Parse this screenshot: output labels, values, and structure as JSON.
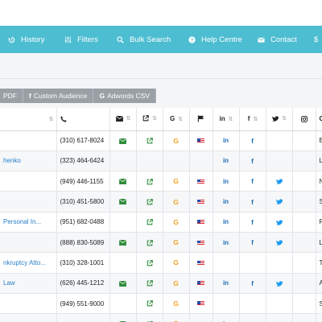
{
  "nav": {
    "items": [
      {
        "label": "History",
        "icon": "history-icon"
      },
      {
        "label": "Filters",
        "icon": "sliders-icon"
      },
      {
        "label": "Bulk Search",
        "icon": "search-icon"
      },
      {
        "label": "Help Centre",
        "icon": "question-circle-icon"
      },
      {
        "label": "Contact",
        "icon": "envelope-icon"
      },
      {
        "label": "$",
        "icon": "dollar-icon"
      }
    ]
  },
  "export_buttons": [
    {
      "label": "PDF"
    },
    {
      "label": "Custom Audience",
      "prefix": "f"
    },
    {
      "label": "Adwords CSV",
      "prefix": "G"
    }
  ],
  "table": {
    "columns": {
      "city": "City"
    },
    "rows": [
      {
        "name": "",
        "phone": "(310) 617-8024",
        "email": true,
        "website": true,
        "google": true,
        "flag": true,
        "linkedin": true,
        "facebook": true,
        "twitter": false,
        "city": "Bever"
      },
      {
        "name": "henko",
        "phone": "(323) 464-6424",
        "email": false,
        "website": false,
        "google": false,
        "flag": false,
        "linkedin": true,
        "facebook": true,
        "twitter": false,
        "city": "Los A"
      },
      {
        "name": "",
        "phone": "(949) 446-1155",
        "email": true,
        "website": true,
        "google": true,
        "flag": true,
        "linkedin": true,
        "facebook": true,
        "twitter": true,
        "city": "Newp"
      },
      {
        "name": "",
        "phone": "(310) 451-5800",
        "email": true,
        "website": true,
        "google": true,
        "flag": true,
        "linkedin": true,
        "facebook": true,
        "twitter": true,
        "city": "Santa"
      },
      {
        "name": "Personal In...",
        "phone": "(951) 682-0488",
        "email": false,
        "website": true,
        "google": true,
        "flag": true,
        "linkedin": true,
        "facebook": true,
        "twitter": true,
        "city": "Rivers"
      },
      {
        "name": "",
        "phone": "(888) 830-5089",
        "email": true,
        "website": true,
        "google": true,
        "flag": true,
        "linkedin": true,
        "facebook": true,
        "twitter": true,
        "city": "Los A"
      },
      {
        "name": "nkruptcy Atto...",
        "phone": "(310) 328-1001",
        "email": false,
        "website": true,
        "google": true,
        "flag": true,
        "linkedin": false,
        "facebook": false,
        "twitter": false,
        "city": "Torrar"
      },
      {
        "name": "Law",
        "phone": "(626) 445-1212",
        "email": true,
        "website": true,
        "google": true,
        "flag": true,
        "linkedin": true,
        "facebook": true,
        "twitter": true,
        "city": "Arcad"
      },
      {
        "name": "",
        "phone": "(949) 551-9000",
        "email": false,
        "website": true,
        "google": true,
        "flag": true,
        "linkedin": false,
        "facebook": false,
        "twitter": false,
        "city": "Seal E"
      },
      {
        "name": "",
        "phone": "",
        "email": true,
        "website": true,
        "google": true,
        "flag": true,
        "linkedin": true,
        "facebook": false,
        "twitter": false,
        "city": ""
      }
    ]
  },
  "colors": {
    "nav_bg": "#4dbdd1",
    "button_bg": "#9aa0a6",
    "link": "#2a7fc9",
    "green_icon": "#2e8b3a",
    "google": "#f0a21e",
    "brand_blue": "#1d6fb5",
    "twitter": "#1d9bf0"
  }
}
